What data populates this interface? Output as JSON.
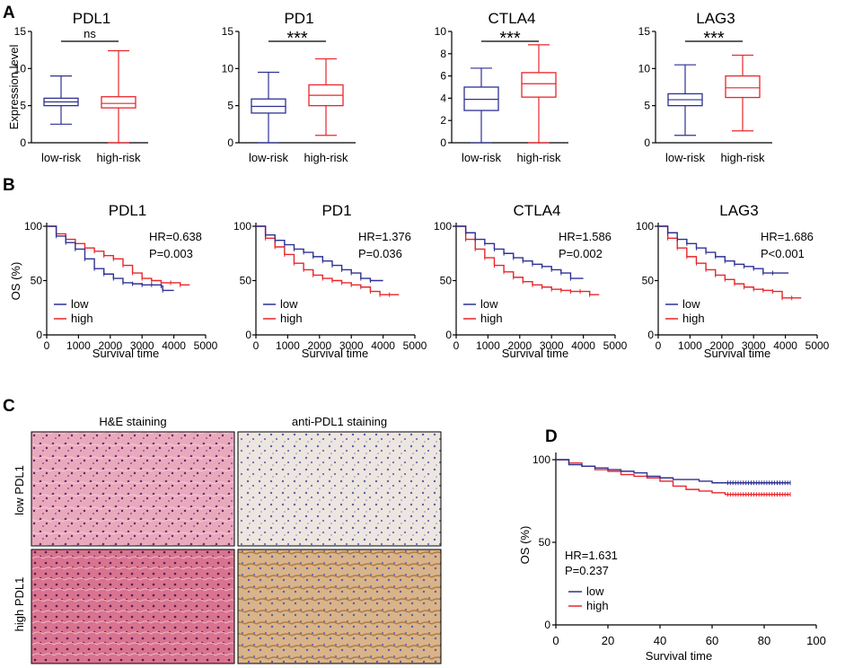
{
  "panel_letters": {
    "a": "A",
    "b": "B",
    "c": "C",
    "d": "D"
  },
  "colors": {
    "low": "#2e3192",
    "high": "#e8262b",
    "axis": "#000000"
  },
  "chart_data": [
    {
      "panel": "A",
      "type": "box",
      "ylabel": "Expression level",
      "charts": [
        {
          "title": "PDL1",
          "ylim": [
            0,
            15
          ],
          "yticks": [
            0,
            5,
            10,
            15
          ],
          "significance": "ns",
          "categories": [
            "low-risk",
            "high-risk"
          ],
          "boxes": [
            {
              "min": 2.5,
              "q1": 5.0,
              "median": 5.5,
              "q3": 6.0,
              "max": 9.0
            },
            {
              "min": 0.0,
              "q1": 4.7,
              "median": 5.3,
              "q3": 6.2,
              "max": 12.4
            }
          ]
        },
        {
          "title": "PD1",
          "ylim": [
            0,
            15
          ],
          "yticks": [
            0,
            5,
            10,
            15
          ],
          "significance": "***",
          "categories": [
            "low-risk",
            "high-risk"
          ],
          "boxes": [
            {
              "min": 0.0,
              "q1": 4.0,
              "median": 4.9,
              "q3": 5.9,
              "max": 9.5
            },
            {
              "min": 1.0,
              "q1": 5.0,
              "median": 6.4,
              "q3": 7.8,
              "max": 11.3
            }
          ]
        },
        {
          "title": "CTLA4",
          "ylim": [
            0,
            10
          ],
          "yticks": [
            0,
            2,
            4,
            6,
            8,
            10
          ],
          "significance": "***",
          "categories": [
            "low-risk",
            "high-risk"
          ],
          "boxes": [
            {
              "min": 0.0,
              "q1": 2.9,
              "median": 3.9,
              "q3": 5.0,
              "max": 6.7
            },
            {
              "min": 0.0,
              "q1": 4.1,
              "median": 5.3,
              "q3": 6.3,
              "max": 8.8
            }
          ]
        },
        {
          "title": "LAG3",
          "ylim": [
            0,
            15
          ],
          "yticks": [
            0,
            5,
            10,
            15
          ],
          "significance": "***",
          "categories": [
            "low-risk",
            "high-risk"
          ],
          "boxes": [
            {
              "min": 1.0,
              "q1": 5.0,
              "median": 5.8,
              "q3": 6.6,
              "max": 10.5
            },
            {
              "min": 1.6,
              "q1": 6.1,
              "median": 7.4,
              "q3": 9.0,
              "max": 11.8
            }
          ]
        }
      ]
    },
    {
      "panel": "B",
      "type": "line",
      "ylabel": "OS (%)",
      "xlabel": "Survival time",
      "xlim": [
        0,
        5000
      ],
      "ylim": [
        0,
        100
      ],
      "xticks": [
        0,
        1000,
        2000,
        3000,
        4000,
        5000
      ],
      "yticks": [
        0,
        50,
        100
      ],
      "legend": [
        "low",
        "high"
      ],
      "charts": [
        {
          "title": "PDL1",
          "hr": "HR=0.638",
          "p": "P=0.003",
          "series": [
            {
              "name": "low",
              "x": [
                0,
                300,
                600,
                900,
                1200,
                1500,
                1800,
                2100,
                2400,
                2700,
                3000,
                3300,
                3600,
                3650,
                4000
              ],
              "y": [
                100,
                91,
                85,
                79,
                70,
                61,
                56,
                52,
                48,
                47,
                46,
                46,
                45,
                41,
                41
              ]
            },
            {
              "name": "high",
              "x": [
                0,
                300,
                600,
                900,
                1200,
                1500,
                1800,
                2100,
                2400,
                2700,
                3000,
                3300,
                3600,
                3900,
                4200,
                4500
              ],
              "y": [
                100,
                93,
                88,
                84,
                80,
                77,
                73,
                70,
                64,
                57,
                52,
                50,
                48,
                48,
                46,
                46
              ]
            }
          ]
        },
        {
          "title": "PD1",
          "hr": "HR=1.376",
          "p": "P=0.036",
          "series": [
            {
              "name": "low",
              "x": [
                0,
                300,
                600,
                900,
                1200,
                1500,
                1800,
                2100,
                2400,
                2700,
                3000,
                3300,
                3600,
                4000
              ],
              "y": [
                100,
                92,
                87,
                83,
                79,
                76,
                72,
                68,
                64,
                60,
                57,
                52,
                50,
                50
              ]
            },
            {
              "name": "high",
              "x": [
                0,
                300,
                600,
                900,
                1200,
                1500,
                1800,
                2100,
                2400,
                2700,
                3000,
                3300,
                3600,
                3900,
                4200,
                4500
              ],
              "y": [
                100,
                89,
                81,
                74,
                66,
                60,
                55,
                52,
                50,
                48,
                46,
                44,
                40,
                37,
                37,
                37
              ]
            }
          ]
        },
        {
          "title": "CTLA4",
          "hr": "HR=1.586",
          "p": "P=0.002",
          "series": [
            {
              "name": "low",
              "x": [
                0,
                300,
                600,
                900,
                1200,
                1500,
                1800,
                2100,
                2400,
                2700,
                3000,
                3300,
                3600,
                4000
              ],
              "y": [
                100,
                94,
                88,
                84,
                79,
                75,
                71,
                68,
                65,
                63,
                60,
                57,
                52,
                52
              ]
            },
            {
              "name": "high",
              "x": [
                0,
                300,
                600,
                900,
                1200,
                1500,
                1800,
                2100,
                2400,
                2700,
                3000,
                3300,
                3600,
                3900,
                4200,
                4500
              ],
              "y": [
                100,
                88,
                79,
                71,
                64,
                58,
                53,
                49,
                46,
                44,
                42,
                41,
                40,
                40,
                37,
                37
              ]
            }
          ]
        },
        {
          "title": "LAG3",
          "hr": "HR=1.686",
          "p": "P<0.001",
          "series": [
            {
              "name": "low",
              "x": [
                0,
                300,
                600,
                900,
                1200,
                1500,
                1800,
                2100,
                2400,
                2700,
                3000,
                3300,
                3600,
                4100
              ],
              "y": [
                100,
                94,
                88,
                84,
                80,
                76,
                72,
                68,
                65,
                63,
                61,
                57,
                57,
                57
              ]
            },
            {
              "name": "high",
              "x": [
                0,
                300,
                600,
                900,
                1200,
                1500,
                1800,
                2100,
                2400,
                2700,
                3000,
                3300,
                3600,
                3900,
                4200,
                4500
              ],
              "y": [
                100,
                89,
                80,
                72,
                66,
                60,
                55,
                51,
                47,
                44,
                42,
                41,
                40,
                34,
                34,
                34
              ]
            }
          ]
        }
      ]
    },
    {
      "panel": "D",
      "type": "line",
      "ylabel": "OS (%)",
      "xlabel": "Survival time",
      "xlim": [
        0,
        100
      ],
      "ylim": [
        0,
        100
      ],
      "xticks": [
        0,
        20,
        40,
        60,
        80,
        100
      ],
      "yticks": [
        0,
        50,
        100
      ],
      "hr": "HR=1.631",
      "p": "P=0.237",
      "legend": [
        "low",
        "high"
      ],
      "series": [
        {
          "name": "low",
          "x": [
            0,
            5,
            10,
            15,
            20,
            25,
            30,
            35,
            40,
            45,
            50,
            55,
            60,
            65,
            70,
            75,
            80,
            85,
            90
          ],
          "y": [
            100,
            97,
            96,
            95,
            94,
            93,
            92,
            90,
            89,
            88,
            88,
            87,
            86,
            86,
            86,
            86,
            86,
            86,
            86
          ]
        },
        {
          "name": "high",
          "x": [
            0,
            5,
            10,
            15,
            20,
            25,
            30,
            35,
            40,
            45,
            50,
            55,
            60,
            65,
            70,
            75,
            80,
            85,
            90
          ],
          "y": [
            100,
            98,
            96,
            94,
            93,
            91,
            90,
            89,
            87,
            84,
            82,
            81,
            80,
            79,
            79,
            79,
            79,
            79,
            79
          ]
        }
      ]
    }
  ],
  "panel_c": {
    "col_headers": [
      "H&E staining",
      "anti-PDL1 staining"
    ],
    "row_labels": [
      "low PDL1",
      "high PDL1"
    ],
    "images": [
      {
        "name": "he-low-pdl1",
        "desc": "H&E low"
      },
      {
        "name": "ihc-low-pdl1",
        "desc": "IHC low"
      },
      {
        "name": "he-high-pdl1",
        "desc": "H&E high"
      },
      {
        "name": "ihc-high-pdl1",
        "desc": "IHC high"
      }
    ]
  }
}
